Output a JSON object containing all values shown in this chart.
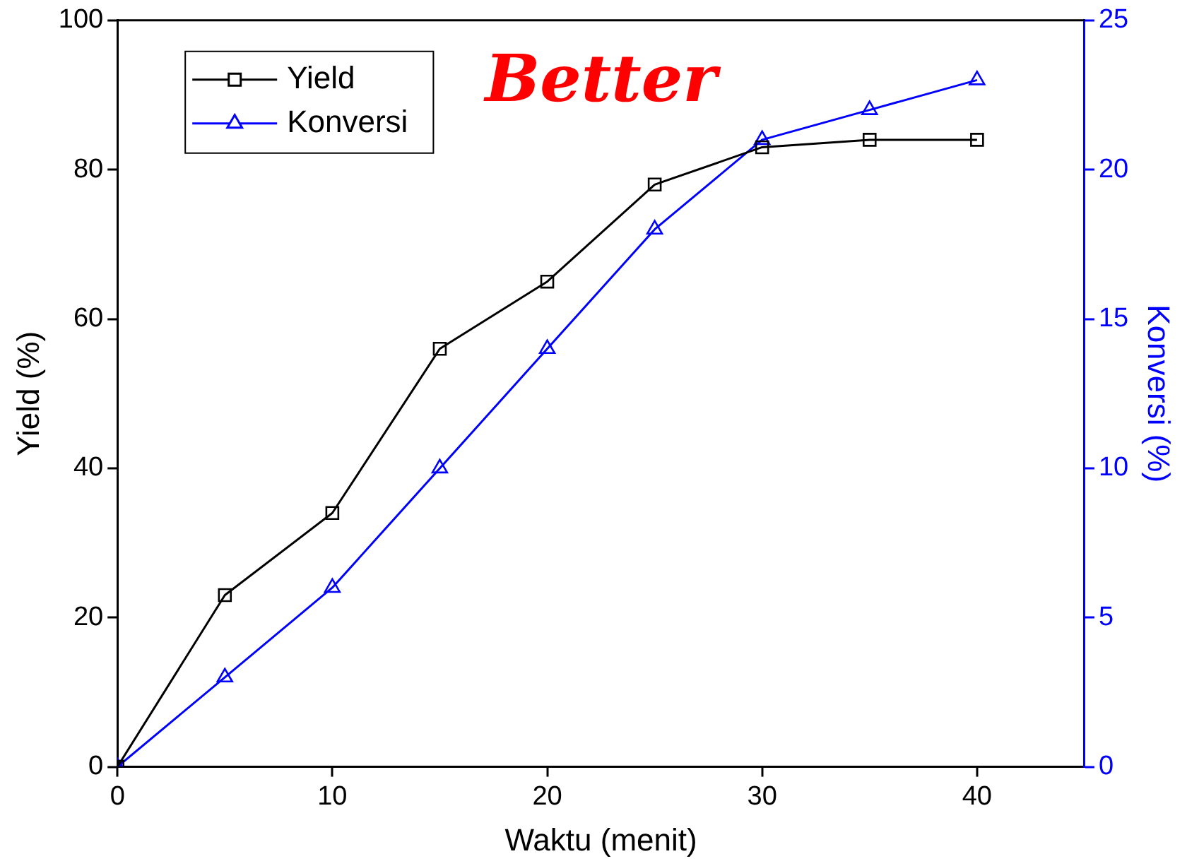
{
  "chart_data": {
    "type": "line",
    "xlabel": "Waktu (menit)",
    "ylabel": "Yield (%)",
    "y2label": "Konversi (%)",
    "x": [
      0,
      5,
      10,
      15,
      20,
      25,
      30,
      35,
      40
    ],
    "series": [
      {
        "name": "Yield",
        "color": "#000000",
        "marker": "square",
        "values": [
          0,
          23,
          34,
          56,
          65,
          78,
          83,
          84,
          84
        ]
      },
      {
        "name": "Konversi",
        "color": "#0000ff",
        "marker": "triangle",
        "axis": "y2",
        "values": [
          0,
          3,
          6,
          10,
          14,
          18,
          21,
          22,
          23
        ]
      }
    ],
    "xlim": [
      0,
      45
    ],
    "xticks": [
      0,
      10,
      20,
      30,
      40
    ],
    "ylim": [
      0,
      100
    ],
    "yticks": [
      0,
      20,
      40,
      60,
      80,
      100
    ],
    "y2lim": [
      0,
      25
    ],
    "y2ticks": [
      0,
      5,
      10,
      15,
      20,
      25
    ],
    "legend": "top left",
    "grid": false,
    "line_style": "solid",
    "annotations": [
      "Better"
    ]
  }
}
